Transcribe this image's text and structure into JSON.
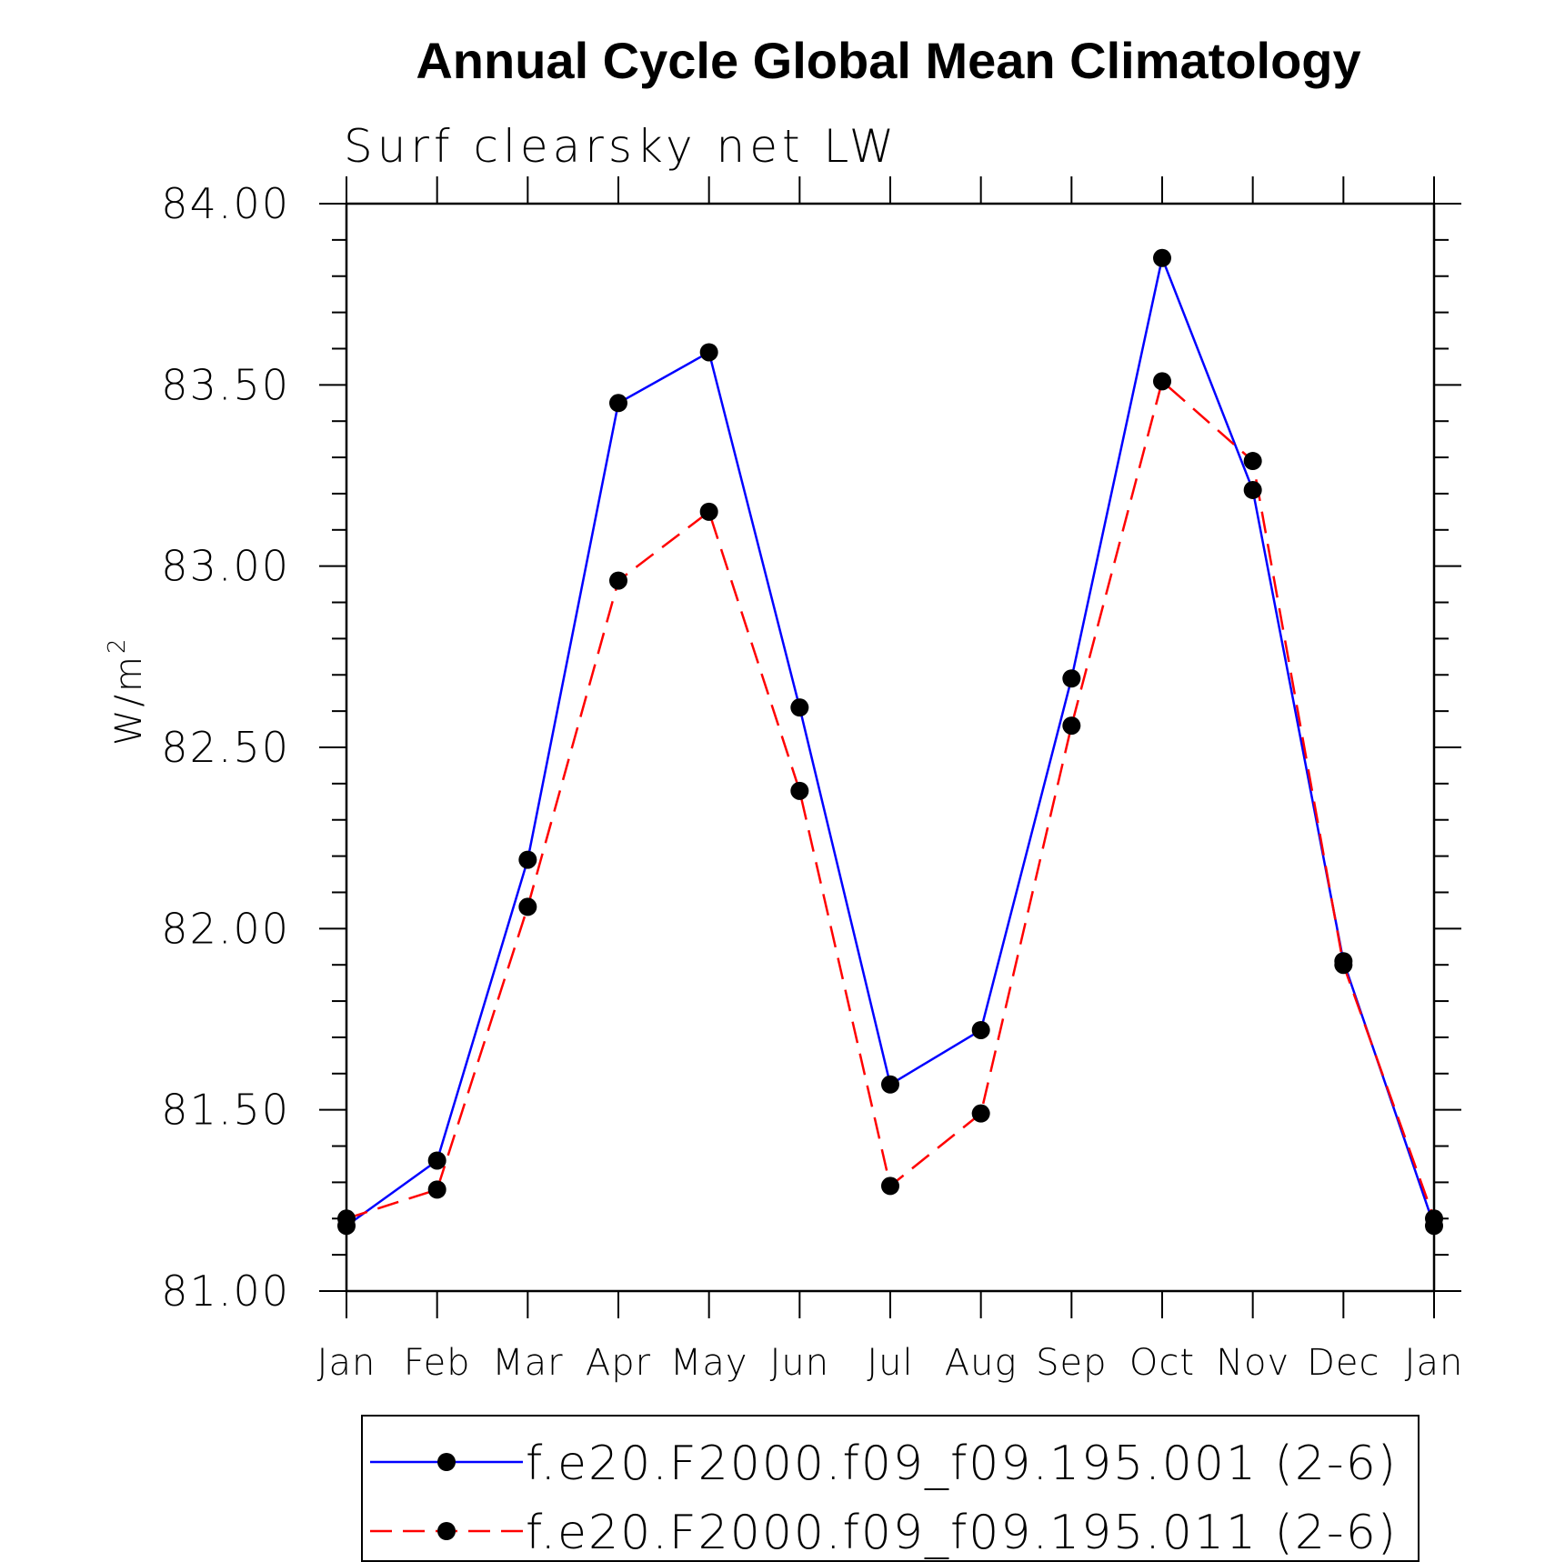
{
  "chart_data": {
    "type": "line",
    "title": "Annual Cycle Global Mean Climatology",
    "subtitle": "Surf clearsky net LW",
    "ylabel": "W/m",
    "ylabel_superscript": "2",
    "categories": [
      "Jan",
      "Feb",
      "Mar",
      "Apr",
      "May",
      "Jun",
      "Jul",
      "Aug",
      "Sep",
      "Oct",
      "Nov",
      "Dec",
      "Jan"
    ],
    "ylim": [
      81.0,
      84.0
    ],
    "yticks": [
      81.0,
      81.5,
      82.0,
      82.5,
      83.0,
      83.5,
      84.0
    ],
    "ytick_labels": [
      "81.00",
      "81.50",
      "82.00",
      "82.50",
      "83.00",
      "83.50",
      "84.00"
    ],
    "grid": false,
    "legend_position": "bottom",
    "series": [
      {
        "name": "f.e20.F2000.f09_f09.195.001 (2-6)",
        "color": "#0000ff",
        "line_style": "solid",
        "marker": "filled-circle",
        "values": [
          81.18,
          81.36,
          82.19,
          83.45,
          83.59,
          82.61,
          81.57,
          81.72,
          82.69,
          83.85,
          83.21,
          81.91,
          81.18
        ]
      },
      {
        "name": "f.e20.F2000.f09_f09.195.011 (2-6)",
        "color": "#ff0000",
        "line_style": "dashed",
        "marker": "filled-circle",
        "values": [
          81.2,
          81.28,
          82.06,
          82.96,
          83.15,
          82.38,
          81.29,
          81.49,
          82.56,
          83.51,
          83.29,
          81.9,
          81.2
        ]
      }
    ]
  }
}
